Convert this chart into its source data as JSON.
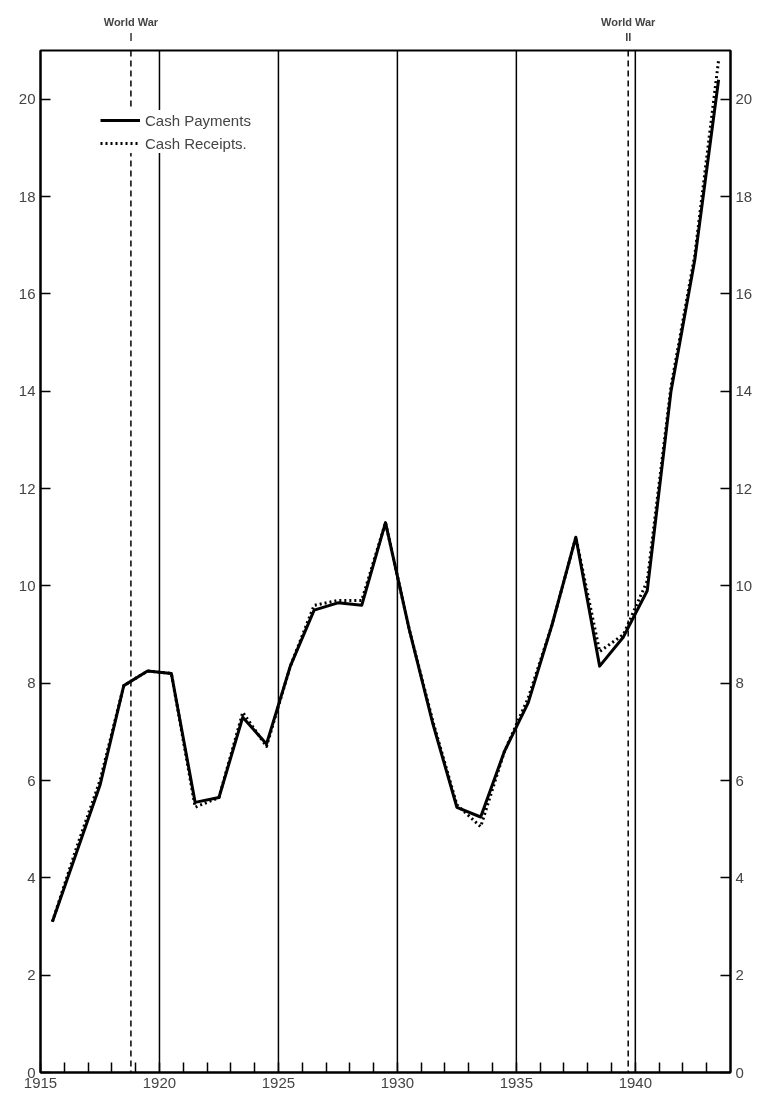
{
  "chart_data": {
    "type": "line",
    "x": [
      1915.5,
      1916.5,
      1917.5,
      1918.5,
      1919.5,
      1920.5,
      1921.5,
      1922.5,
      1923.5,
      1924.5,
      1925.5,
      1926.5,
      1927.5,
      1928.5,
      1929.5,
      1930.5,
      1931.5,
      1932.5,
      1933.5,
      1934.5,
      1935.5,
      1936.5,
      1937.5,
      1938.5,
      1939.5,
      1940.5,
      1941.5,
      1942.5,
      1943.5
    ],
    "series": [
      {
        "name": "Cash Payments",
        "color": "#000000",
        "line_style": "solid",
        "values": [
          3.1,
          4.5,
          5.9,
          7.95,
          8.25,
          8.2,
          5.55,
          5.65,
          7.3,
          6.75,
          8.35,
          9.5,
          9.65,
          9.6,
          11.3,
          9.1,
          7.15,
          5.45,
          5.25,
          6.6,
          7.6,
          9.2,
          11.0,
          8.35,
          8.95,
          9.9,
          14.0,
          16.7,
          20.4
        ]
      },
      {
        "name": "Cash Receipts.",
        "color": "#000000",
        "line_style": "dotted",
        "values": [
          3.1,
          4.6,
          6.0,
          7.95,
          8.25,
          8.2,
          5.45,
          5.65,
          7.4,
          6.7,
          8.35,
          9.6,
          9.7,
          9.7,
          11.3,
          9.1,
          7.2,
          5.5,
          5.05,
          6.6,
          7.7,
          9.2,
          11.0,
          8.65,
          9.0,
          10.1,
          14.1,
          16.8,
          20.8
        ]
      }
    ],
    "xlim": [
      1915,
      1944
    ],
    "ylim": [
      0,
      21
    ],
    "y2lim": [
      0,
      21
    ],
    "xticks": [
      1915,
      {
        "value": 1916,
        "label": null
      },
      {
        "value": 1917,
        "label": null
      },
      {
        "value": 1918,
        "label": null
      },
      {
        "value": 1919,
        "label": null
      },
      1920,
      {
        "value": 1921,
        "label": null
      },
      {
        "value": 1922,
        "label": null
      },
      {
        "value": 1923,
        "label": null
      },
      {
        "value": 1924,
        "label": null
      },
      1925,
      {
        "value": 1926,
        "label": null
      },
      {
        "value": 1927,
        "label": null
      },
      {
        "value": 1928,
        "label": null
      },
      {
        "value": 1929,
        "label": null
      },
      1930,
      {
        "value": 1931,
        "label": null
      },
      {
        "value": 1932,
        "label": null
      },
      {
        "value": 1933,
        "label": null
      },
      {
        "value": 1934,
        "label": null
      },
      1935,
      {
        "value": 1936,
        "label": null
      },
      {
        "value": 1937,
        "label": null
      },
      {
        "value": 1938,
        "label": null
      },
      {
        "value": 1939,
        "label": null
      },
      1940,
      {
        "value": 1941,
        "label": null
      },
      {
        "value": 1942,
        "label": null
      },
      {
        "value": 1943,
        "label": null
      }
    ],
    "yticks": [
      0,
      2,
      4,
      6,
      8,
      10,
      12,
      14,
      16,
      18,
      20
    ],
    "y2ticks": [
      0,
      2,
      4,
      6,
      8,
      10,
      12,
      14,
      16,
      18,
      20
    ],
    "ref_lines": [
      {
        "axis": "x",
        "value": 1918.8,
        "label": "World War I",
        "line_style": "dashed"
      },
      {
        "axis": "x",
        "value": 1920,
        "line_style": "solid"
      },
      {
        "axis": "x",
        "value": 1925,
        "line_style": "solid"
      },
      {
        "axis": "x",
        "value": 1930,
        "line_style": "solid"
      },
      {
        "axis": "x",
        "value": 1935,
        "line_style": "solid"
      },
      {
        "axis": "x",
        "value": 1939.7,
        "label": "World War II",
        "line_style": "dashed"
      },
      {
        "axis": "x",
        "value": 1940,
        "line_style": "solid"
      }
    ],
    "grid": false,
    "legend": "top left",
    "marker": "none"
  }
}
